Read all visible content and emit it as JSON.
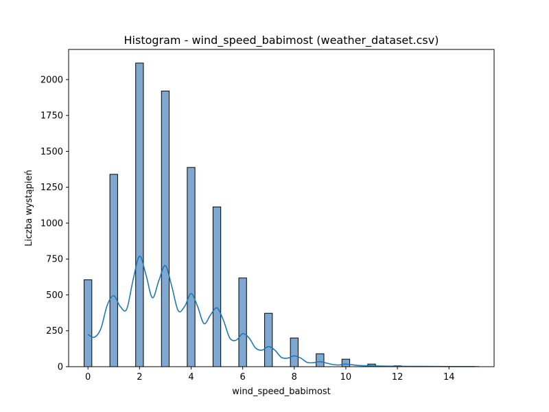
{
  "chart_data": {
    "type": "bar",
    "subtype": "histogram_with_kde",
    "title": "Histogram - wind_speed_babimost (weather_dataset.csv)",
    "xlabel": "wind_speed_babimost",
    "ylabel": "Liczba wystąpień",
    "xlim": [
      -0.75,
      15.75
    ],
    "ylim": [
      0,
      2210
    ],
    "xticks": [
      0,
      2,
      4,
      6,
      8,
      10,
      12,
      14
    ],
    "yticks": [
      0,
      250,
      500,
      750,
      1000,
      1250,
      1500,
      1750,
      2000
    ],
    "bin_width": 0.3,
    "bins": [
      {
        "x": 0,
        "count": 605
      },
      {
        "x": 1,
        "count": 1340
      },
      {
        "x": 2,
        "count": 2115
      },
      {
        "x": 3,
        "count": 1920
      },
      {
        "x": 4,
        "count": 1388
      },
      {
        "x": 5,
        "count": 1113
      },
      {
        "x": 6,
        "count": 618
      },
      {
        "x": 7,
        "count": 372
      },
      {
        "x": 8,
        "count": 200
      },
      {
        "x": 9,
        "count": 90
      },
      {
        "x": 10,
        "count": 52
      },
      {
        "x": 11,
        "count": 18
      },
      {
        "x": 12,
        "count": 6
      },
      {
        "x": 13,
        "count": 2
      },
      {
        "x": 14,
        "count": 1
      },
      {
        "x": 15,
        "count": 1
      }
    ],
    "kde": {
      "x": [
        0,
        0.25,
        0.5,
        0.75,
        1,
        1.25,
        1.5,
        1.75,
        2,
        2.25,
        2.5,
        2.75,
        3,
        3.25,
        3.5,
        3.75,
        4,
        4.25,
        4.5,
        4.75,
        5,
        5.25,
        5.5,
        5.75,
        6,
        6.25,
        6.5,
        6.75,
        7,
        7.25,
        7.5,
        7.75,
        8,
        8.25,
        8.5,
        8.75,
        9,
        9.25,
        9.5,
        9.75,
        10,
        10.5,
        11,
        11.5,
        12,
        13,
        14,
        15
      ],
      "y": [
        225,
        205,
        265,
        430,
        495,
        420,
        400,
        605,
        770,
        640,
        480,
        600,
        705,
        560,
        390,
        420,
        510,
        420,
        300,
        360,
        410,
        325,
        200,
        185,
        230,
        200,
        130,
        115,
        140,
        115,
        65,
        60,
        75,
        60,
        30,
        28,
        35,
        25,
        15,
        12,
        18,
        8,
        6,
        4,
        3,
        2,
        1,
        1
      ]
    },
    "colors": {
      "bar_fill": "#7ea8cf",
      "bar_edge": "#000000",
      "kde_line": "#1f77b4"
    },
    "grid": false,
    "legend": "none"
  }
}
